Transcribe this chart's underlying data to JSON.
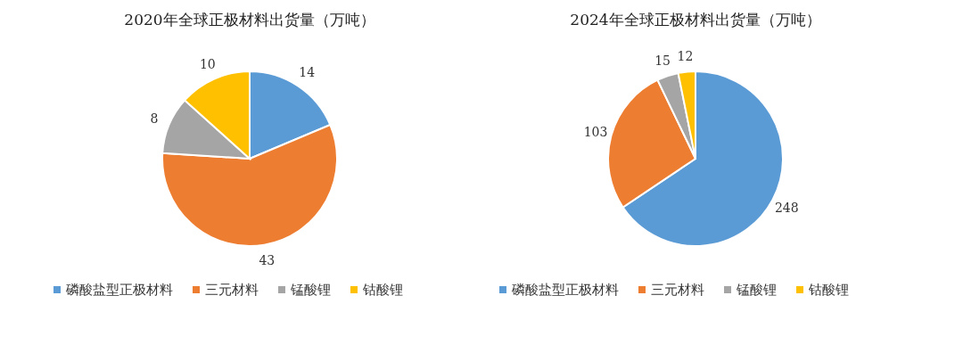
{
  "chart_data": [
    {
      "type": "pie",
      "title": "2020年全球正极材料出货量（万吨）",
      "categories": [
        "磷酸盐型正极材料",
        "三元材料",
        "锰酸锂",
        "钴酸锂"
      ],
      "values": [
        14,
        43,
        8,
        10
      ],
      "colors": [
        "#5b9bd5",
        "#ed7d31",
        "#a5a5a5",
        "#ffc000"
      ],
      "data_labels": true,
      "legend": "bottom"
    },
    {
      "type": "pie",
      "title": "2024年全球正极材料出货量（万吨）",
      "categories": [
        "磷酸盐型正极材料",
        "三元材料",
        "锰酸锂",
        "钴酸锂"
      ],
      "values": [
        248,
        103,
        15,
        12
      ],
      "colors": [
        "#5b9bd5",
        "#ed7d31",
        "#a5a5a5",
        "#ffc000"
      ],
      "data_labels": true,
      "legend": "bottom"
    }
  ]
}
